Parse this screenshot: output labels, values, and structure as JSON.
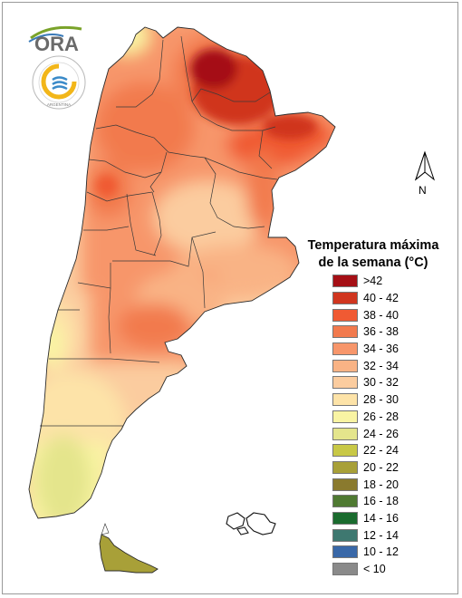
{
  "logos": {
    "ora": {
      "text": "ORA"
    },
    "smn": {
      "text": "ARGENTINA"
    }
  },
  "north_arrow": {
    "label": "N"
  },
  "legend": {
    "title_line1": "Temperatura máxima",
    "title_line2": "de la semana (°C)",
    "items": [
      {
        "label": ">42",
        "color": "#a50f15"
      },
      {
        "label": "40 - 42",
        "color": "#d0361f"
      },
      {
        "label": "38 - 40",
        "color": "#f05a33"
      },
      {
        "label": "36 - 38",
        "color": "#f27a4e"
      },
      {
        "label": "34 - 36",
        "color": "#f7966b"
      },
      {
        "label": "32 - 34",
        "color": "#f9b385"
      },
      {
        "label": "30 - 32",
        "color": "#fbcc9f"
      },
      {
        "label": "28 - 30",
        "color": "#fde3a8"
      },
      {
        "label": "26 - 28",
        "color": "#f9f4a3"
      },
      {
        "label": "24 - 26",
        "color": "#e4e58c"
      },
      {
        "label": "22 - 24",
        "color": "#c8c846"
      },
      {
        "label": "20 - 22",
        "color": "#a8a038"
      },
      {
        "label": "18 - 20",
        "color": "#8a7a2e"
      },
      {
        "label": "16 - 18",
        "color": "#4f7a32"
      },
      {
        "label": "14 - 16",
        "color": "#1a6b2e"
      },
      {
        "label": "12 - 14",
        "color": "#3e7870"
      },
      {
        "label": "10 - 12",
        "color": "#3968a8"
      },
      {
        "label": "< 10",
        "color": "#8a8a8a"
      }
    ]
  }
}
